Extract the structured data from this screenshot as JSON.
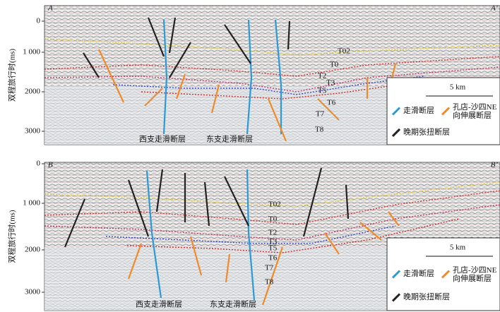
{
  "panels": [
    {
      "label_left": "A",
      "label_right": "A’",
      "y_axis": {
        "label": "双程旅行时(ms)",
        "ticks": [
          "0",
          "1 000",
          "2000",
          "3000"
        ]
      },
      "horizons": [
        "T02",
        "T0",
        "T2",
        "T3",
        "T5",
        "T6",
        "T7",
        "T8"
      ],
      "fault_labels": [
        "西支走滑断层",
        "东支走滑断层"
      ],
      "legend": {
        "scale": "5 km",
        "items": [
          {
            "label": [
              "走滑断层"
            ]
          },
          {
            "label": [
              "孔店-沙四NE",
              "向伸展断层"
            ]
          },
          {
            "label": [
              "晚期张扭断层"
            ]
          }
        ]
      }
    },
    {
      "label_left": "B",
      "label_right": "B’",
      "y_axis": {
        "label": "双程旅行时(ms)",
        "ticks": [
          "0",
          "1 000",
          "2000",
          "3000"
        ]
      },
      "horizons": [
        "T02",
        "T0",
        "T2",
        "T3",
        "T5",
        "T6",
        "T7",
        "T8"
      ],
      "fault_labels": [
        "西支走滑断层",
        "东支走滑断层"
      ],
      "legend": {
        "scale": "5 km",
        "items": [
          {
            "label": [
              "走滑断层"
            ]
          },
          {
            "label": [
              "孔店-沙四NE",
              "向伸展断层"
            ]
          },
          {
            "label": [
              "晚期张扭断层"
            ]
          }
        ]
      }
    }
  ]
}
